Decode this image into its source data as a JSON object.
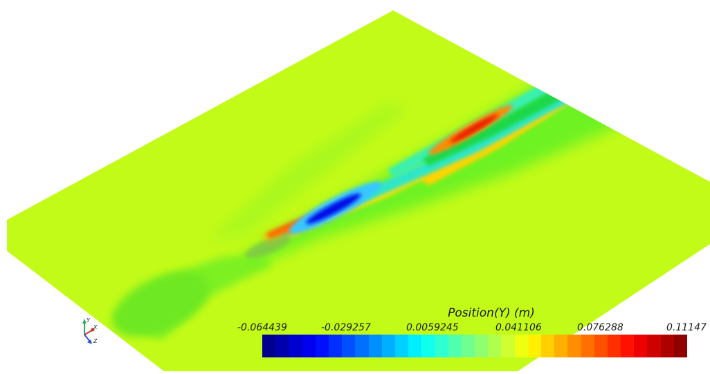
{
  "colorbar": {
    "title": "Position(Y) (m)",
    "tick_labels": [
      "-0.064439",
      "-0.029257",
      "0.0059245",
      "0.041106",
      "0.076288",
      "0.11147"
    ],
    "range": [
      -0.064439,
      0.11147
    ],
    "colormap": "jet",
    "segments": 32
  },
  "orientation_axes": {
    "x_label": "X",
    "y_label": "Y",
    "z_label": "Z",
    "x_color": "#c0392b",
    "y_color": "#27ae60",
    "z_color": "#2e4fd6"
  },
  "field": {
    "background_color": "#c3fb19",
    "plane_color": "#c3fb19"
  }
}
